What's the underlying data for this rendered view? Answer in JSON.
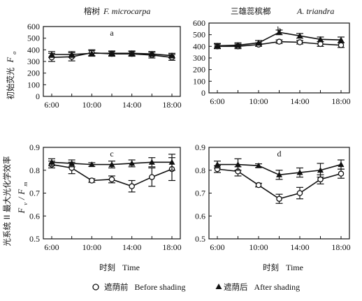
{
  "figure": {
    "col_left_title_cn": "榕树",
    "col_left_title_en": "F. microcarpa",
    "col_right_title_cn": "三雄蕊槟榔",
    "col_right_title_en": "A. triandra",
    "row_top_ylabel_cn": "初始荧光",
    "row_top_ylabel_sym": "F",
    "row_top_ylabel_sub": "o",
    "row_bottom_ylabel_cn": "光系统 II 最大光化学效率",
    "row_bottom_ylabel_sym": "F",
    "row_bottom_ylabel_sub1": "v",
    "row_bottom_ylabel_slash": "/",
    "row_bottom_ylabel_sym2": "F",
    "row_bottom_ylabel_sub2": "m",
    "xlabel_cn": "时刻",
    "xlabel_en": "Time",
    "legend": {
      "before_marker": "○",
      "before_cn": "遮荫前",
      "before_en": "Before shading",
      "after_marker": "▲",
      "after_cn": "遮荫后",
      "after_en": "After shading"
    }
  },
  "chart_data": [
    {
      "panel": "a",
      "type": "line",
      "x": [
        "6:00",
        "8:00",
        "10:00",
        "12:00",
        "14:00",
        "16:00",
        "18:00"
      ],
      "xticks": [
        "6:00",
        "10:00",
        "14:00",
        "18:00"
      ],
      "ylim": [
        0,
        600
      ],
      "yticks": [
        0,
        100,
        200,
        300,
        400,
        500,
        600
      ],
      "series": [
        {
          "marker": "circle",
          "values": [
            335,
            340,
            375,
            365,
            365,
            355,
            335
          ],
          "errors": [
            35,
            35,
            25,
            20,
            20,
            25,
            25
          ]
        },
        {
          "marker": "triangle",
          "values": [
            360,
            360,
            370,
            370,
            370,
            365,
            350
          ],
          "errors": [
            25,
            25,
            25,
            20,
            20,
            20,
            20
          ]
        }
      ]
    },
    {
      "panel": "b",
      "type": "line",
      "x": [
        "6:00",
        "8:00",
        "10:00",
        "12:00",
        "14:00",
        "16:00",
        "18:00"
      ],
      "xticks": [
        "6:00",
        "10:00",
        "14:00",
        "18:00"
      ],
      "ylim": [
        0,
        600
      ],
      "yticks": [
        0,
        100,
        200,
        300,
        400,
        500,
        600
      ],
      "series": [
        {
          "marker": "circle",
          "values": [
            400,
            400,
            415,
            440,
            435,
            420,
            410
          ],
          "errors": [
            20,
            20,
            15,
            15,
            15,
            20,
            20
          ]
        },
        {
          "marker": "triangle",
          "values": [
            405,
            410,
            430,
            520,
            490,
            460,
            455
          ],
          "errors": [
            20,
            20,
            20,
            20,
            20,
            20,
            25
          ]
        }
      ]
    },
    {
      "panel": "c",
      "type": "line",
      "x": [
        "6:00",
        "8:00",
        "10:00",
        "12:00",
        "14:00",
        "16:00",
        "18:00"
      ],
      "xticks": [
        "6:00",
        "10:00",
        "14:00",
        "18:00"
      ],
      "ylim": [
        0.5,
        0.9
      ],
      "yticks": [
        "0.5",
        "0.6",
        "0.7",
        "0.8",
        "0.9"
      ],
      "series": [
        {
          "marker": "circle",
          "values": [
            0.825,
            0.81,
            0.755,
            0.76,
            0.73,
            0.77,
            0.805
          ],
          "errors": [
            0.015,
            0.025,
            0.008,
            0.015,
            0.025,
            0.04,
            0.05
          ]
        },
        {
          "marker": "triangle",
          "values": [
            0.835,
            0.83,
            0.825,
            0.825,
            0.83,
            0.835,
            0.835
          ],
          "errors": [
            0.015,
            0.015,
            0.008,
            0.015,
            0.015,
            0.02,
            0.035
          ]
        }
      ]
    },
    {
      "panel": "d",
      "type": "line",
      "x": [
        "6:00",
        "8:00",
        "10:00",
        "12:00",
        "14:00",
        "16:00",
        "18:00"
      ],
      "xticks": [
        "6:00",
        "10:00",
        "14:00",
        "18:00"
      ],
      "ylim": [
        0.5,
        0.9
      ],
      "yticks": [
        "0.5",
        "0.6",
        "0.7",
        "0.8",
        "0.9"
      ],
      "series": [
        {
          "marker": "circle",
          "values": [
            0.805,
            0.795,
            0.735,
            0.675,
            0.7,
            0.76,
            0.785
          ],
          "errors": [
            0.015,
            0.02,
            0.008,
            0.02,
            0.025,
            0.02,
            0.02
          ]
        },
        {
          "marker": "triangle",
          "values": [
            0.825,
            0.825,
            0.82,
            0.78,
            0.79,
            0.8,
            0.825
          ],
          "errors": [
            0.015,
            0.025,
            0.008,
            0.02,
            0.02,
            0.03,
            0.02
          ]
        }
      ]
    }
  ]
}
